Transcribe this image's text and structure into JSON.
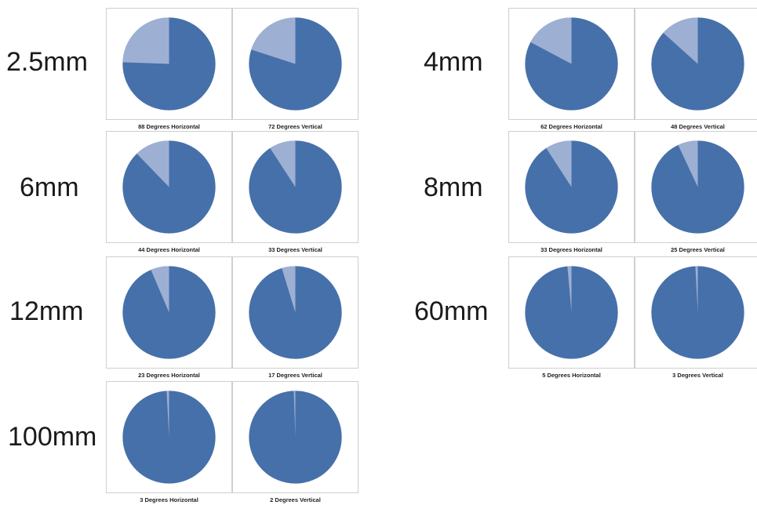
{
  "colors": {
    "main": "#4670a9",
    "fov": "#9db0d3",
    "panel_border": "#cfcfcf"
  },
  "chart_data": {
    "type": "pie",
    "units": "degrees",
    "groups": [
      {
        "lens": "2.5mm",
        "charts": [
          {
            "caption": "88 Degrees Horizontal",
            "fov_degrees": 88
          },
          {
            "caption": "72 Degrees Vertical",
            "fov_degrees": 72
          }
        ]
      },
      {
        "lens": "4mm",
        "charts": [
          {
            "caption": "62 Degrees Horizontal",
            "fov_degrees": 62
          },
          {
            "caption": "48 Degrees Vertical",
            "fov_degrees": 48
          }
        ]
      },
      {
        "lens": "6mm",
        "charts": [
          {
            "caption": "44 Degrees Horizontal",
            "fov_degrees": 44
          },
          {
            "caption": "33 Degrees Vertical",
            "fov_degrees": 33
          }
        ]
      },
      {
        "lens": "8mm",
        "charts": [
          {
            "caption": "33 Degrees Horizontal",
            "fov_degrees": 33
          },
          {
            "caption": "25 Degrees Vertical",
            "fov_degrees": 25
          }
        ]
      },
      {
        "lens": "12mm",
        "charts": [
          {
            "caption": "23 Degrees Horizontal",
            "fov_degrees": 23
          },
          {
            "caption": "17 Degrees Vertical",
            "fov_degrees": 17
          }
        ]
      },
      {
        "lens": "60mm",
        "charts": [
          {
            "caption": "5 Degrees Horizontal",
            "fov_degrees": 5
          },
          {
            "caption": "3 Degrees Vertical",
            "fov_degrees": 3
          }
        ]
      },
      {
        "lens": "100mm",
        "charts": [
          {
            "caption": "3 Degrees Horizontal",
            "fov_degrees": 3
          },
          {
            "caption": "2 Degrees Vertical",
            "fov_degrees": 2
          }
        ]
      }
    ]
  }
}
